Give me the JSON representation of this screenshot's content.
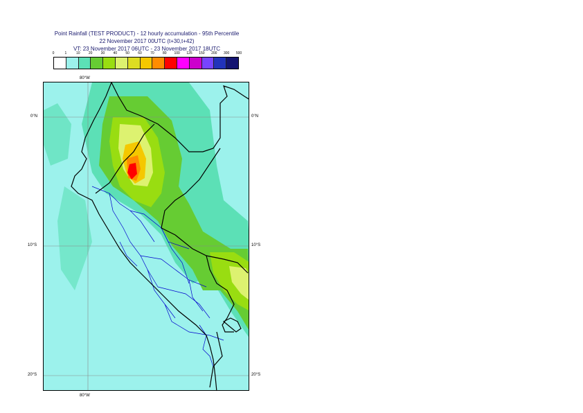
{
  "header": {
    "title_line1": "Point Rainfall (TEST PRODUCT) - 12 hourly accumulation - 95th Percentile",
    "title_line2": "22 November 2017 00UTC (t+30,t+42)",
    "title_line3": "VT: 23 November 2017 06UTC - 23 November 2017 18UTC"
  },
  "legend": {
    "thresholds": [
      "0",
      "1",
      "10",
      "20",
      "30",
      "40",
      "50",
      "60",
      "70",
      "80",
      "100",
      "125",
      "150",
      "200",
      "300",
      "500"
    ],
    "colors": [
      "#ffffff",
      "#9cf2ec",
      "#5ce0b6",
      "#66cc33",
      "#99dd11",
      "#ddf270",
      "#dddd22",
      "#f5c800",
      "#ff8c00",
      "#ff0000",
      "#ff00ff",
      "#cc00cc",
      "#7744ff",
      "#2233bb",
      "#151571"
    ]
  },
  "map": {
    "lon_label_top": "80°W",
    "lon_label_bottom": "80°W",
    "lat_labels_left": [
      "0°N",
      "10°S",
      "20°S"
    ],
    "lat_labels_right": [
      "0°N",
      "10°S",
      "20°S"
    ],
    "colors": {
      "ocean_background": "#9cf2ec",
      "light_field": "#5ce0b6",
      "green_field": "#66cc33",
      "yellowgreen_field": "#99dd11",
      "yellow_field": "#ddf270",
      "orange_field": "#f5c800",
      "dark_orange_field": "#ff8c00",
      "red_field": "#ff0000",
      "coastline": "#000000",
      "admin_borders": "#0000cc",
      "graticule": "#888888"
    }
  }
}
